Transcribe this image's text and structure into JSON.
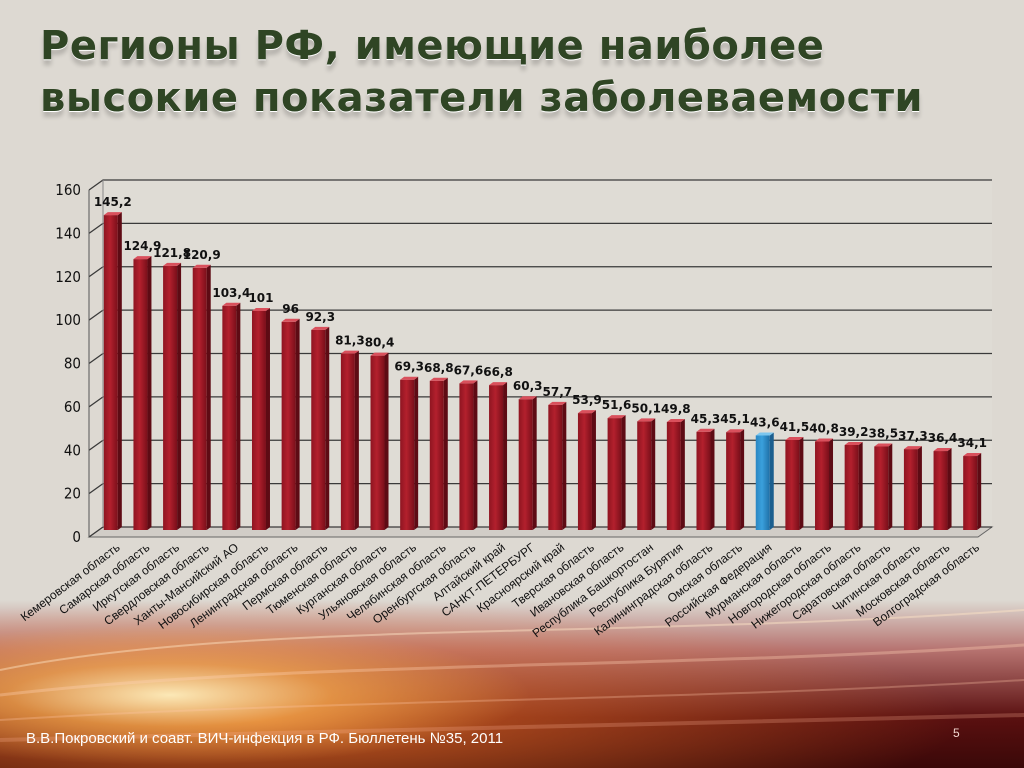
{
  "title": "Регионы РФ, имеющие наиболее высокие показатели заболеваемости",
  "source": "В.В.Покровский и соавт. ВИЧ-инфекция в РФ. Бюллетень №35, 2011",
  "page_number": "5",
  "colors": {
    "bar": "#b3202d",
    "highlight_bar": "#3aa0dc",
    "title": "#2f4524"
  },
  "chart_data": {
    "type": "bar",
    "title": "",
    "xlabel": "",
    "ylabel": "",
    "ylim": [
      0,
      160
    ],
    "yticks": [
      0,
      20,
      40,
      60,
      80,
      100,
      120,
      140,
      160
    ],
    "grid": true,
    "legend": "none",
    "categories": [
      "Кемеровская область",
      "Самарская область",
      "Иркутская область",
      "Свердловская область",
      "Ханты-Мансийский АО",
      "Новосибирская область",
      "Ленинградская область",
      "Пермская область",
      "Тюменская область",
      "Курганская область",
      "Ульяновская область",
      "Челябинская область",
      "Оренбургская область",
      "Алтайский край",
      "САНКТ-ПЕТЕРБУРГ",
      "Красноярский край",
      "Тверская область",
      "Ивановская область",
      "Республика Башкортостан",
      "Республика Бурятия",
      "Калининградская область",
      "Омская область",
      "Российская Федерация",
      "Мурманская область",
      "Новгородская область",
      "Нижегородская область",
      "Саратовская область",
      "Читинская область",
      "Московская область",
      "Волгоградская область"
    ],
    "values": [
      145.2,
      124.9,
      121.8,
      120.9,
      103.4,
      101,
      96,
      92.3,
      81.3,
      80.4,
      69.3,
      68.8,
      67.6,
      66.8,
      60.3,
      57.7,
      53.9,
      51.6,
      50.1,
      49.8,
      45.3,
      45.1,
      43.6,
      41.5,
      40.8,
      39.2,
      38.5,
      37.3,
      36.4,
      34.1
    ],
    "value_labels": [
      "145,2",
      "124,9",
      "121,8",
      "120,9",
      "103,4",
      "101",
      "96",
      "92,3",
      "81,3",
      "80,4",
      "69,3",
      "68,8",
      "67,6",
      "66,8",
      "60,3",
      "57,7",
      "53,9",
      "51,6",
      "50,1",
      "49,8",
      "45,3",
      "45,1",
      "43,6",
      "41,5",
      "40,8",
      "39,2",
      "38,5",
      "37,3",
      "36,4",
      "34,1"
    ],
    "highlight": "Российская Федерация"
  }
}
